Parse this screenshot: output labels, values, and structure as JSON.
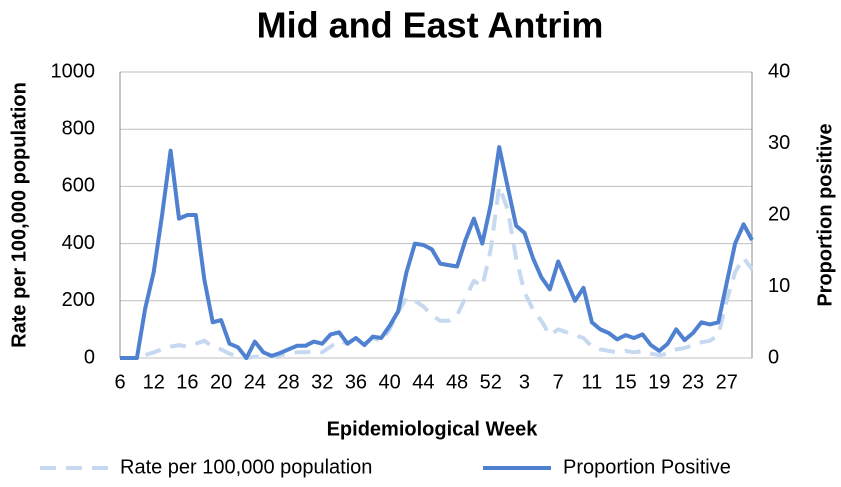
{
  "chart_data": {
    "type": "line",
    "title": "Mid and East Antrim",
    "x_label": "Epidemiological Week",
    "y_label": "Rate per 100,000 population",
    "y2_label": "Proportion positive",
    "categories": [
      "6",
      null,
      null,
      null,
      "12",
      null,
      null,
      null,
      "16",
      null,
      null,
      null,
      "20",
      null,
      null,
      null,
      "24",
      null,
      null,
      null,
      "28",
      null,
      null,
      null,
      "32",
      null,
      null,
      null,
      "36",
      null,
      null,
      null,
      "40",
      null,
      null,
      null,
      "44",
      null,
      null,
      null,
      "48",
      null,
      null,
      null,
      "52",
      null,
      null,
      null,
      "3",
      null,
      null,
      null,
      "7",
      null,
      null,
      null,
      "11",
      null,
      null,
      null,
      "15",
      null,
      null,
      null,
      "19",
      null,
      null,
      null,
      "23",
      null,
      null,
      null,
      "27",
      null,
      null,
      null
    ],
    "ylim": [
      0,
      1000
    ],
    "yticks": [
      0,
      200,
      400,
      600,
      800,
      1000
    ],
    "y2lim": [
      0,
      40
    ],
    "y2ticks": [
      0,
      10,
      20,
      30,
      40
    ],
    "grid": true,
    "legend": "bottom",
    "series": [
      {
        "name": "Rate per 100,000 population",
        "color": "#c6d9f1",
        "dashed": true,
        "values": [
          0,
          0,
          0,
          10,
          20,
          30,
          40,
          45,
          40,
          50,
          60,
          40,
          30,
          15,
          5,
          0,
          5,
          5,
          5,
          10,
          15,
          20,
          20,
          25,
          20,
          40,
          60,
          50,
          70,
          50,
          70,
          60,
          100,
          160,
          210,
          200,
          180,
          150,
          130,
          130,
          150,
          210,
          270,
          250,
          380,
          600,
          520,
          350,
          230,
          170,
          130,
          80,
          100,
          90,
          80,
          70,
          40,
          30,
          25,
          20,
          25,
          20,
          25,
          15,
          10,
          15,
          30,
          35,
          45,
          55,
          60,
          80,
          200,
          300,
          350,
          310
        ]
      },
      {
        "name": "Proportion Positive",
        "color": "#4f81d0",
        "dashed": false,
        "axis": "y2",
        "values": [
          0,
          0,
          0,
          7,
          12,
          20,
          29,
          19.5,
          20,
          20,
          11,
          5,
          5.3,
          2,
          1.5,
          0,
          2.3,
          0.8,
          0.3,
          0.7,
          1.2,
          1.7,
          1.7,
          2.3,
          2,
          3.3,
          3.6,
          2,
          2.8,
          1.8,
          3,
          2.8,
          4.5,
          6.5,
          12,
          16,
          15.8,
          15.2,
          13.2,
          13,
          12.8,
          16.5,
          19.5,
          16,
          21.5,
          29.5,
          24,
          18.5,
          17.5,
          14,
          11.3,
          9.6,
          13.5,
          10.8,
          8,
          9.8,
          5,
          4,
          3.5,
          2.6,
          3.2,
          2.8,
          3.3,
          1.8,
          1,
          2,
          4,
          2.5,
          3.5,
          5,
          4.7,
          5,
          10.5,
          16,
          18.7,
          16.5
        ]
      }
    ]
  }
}
